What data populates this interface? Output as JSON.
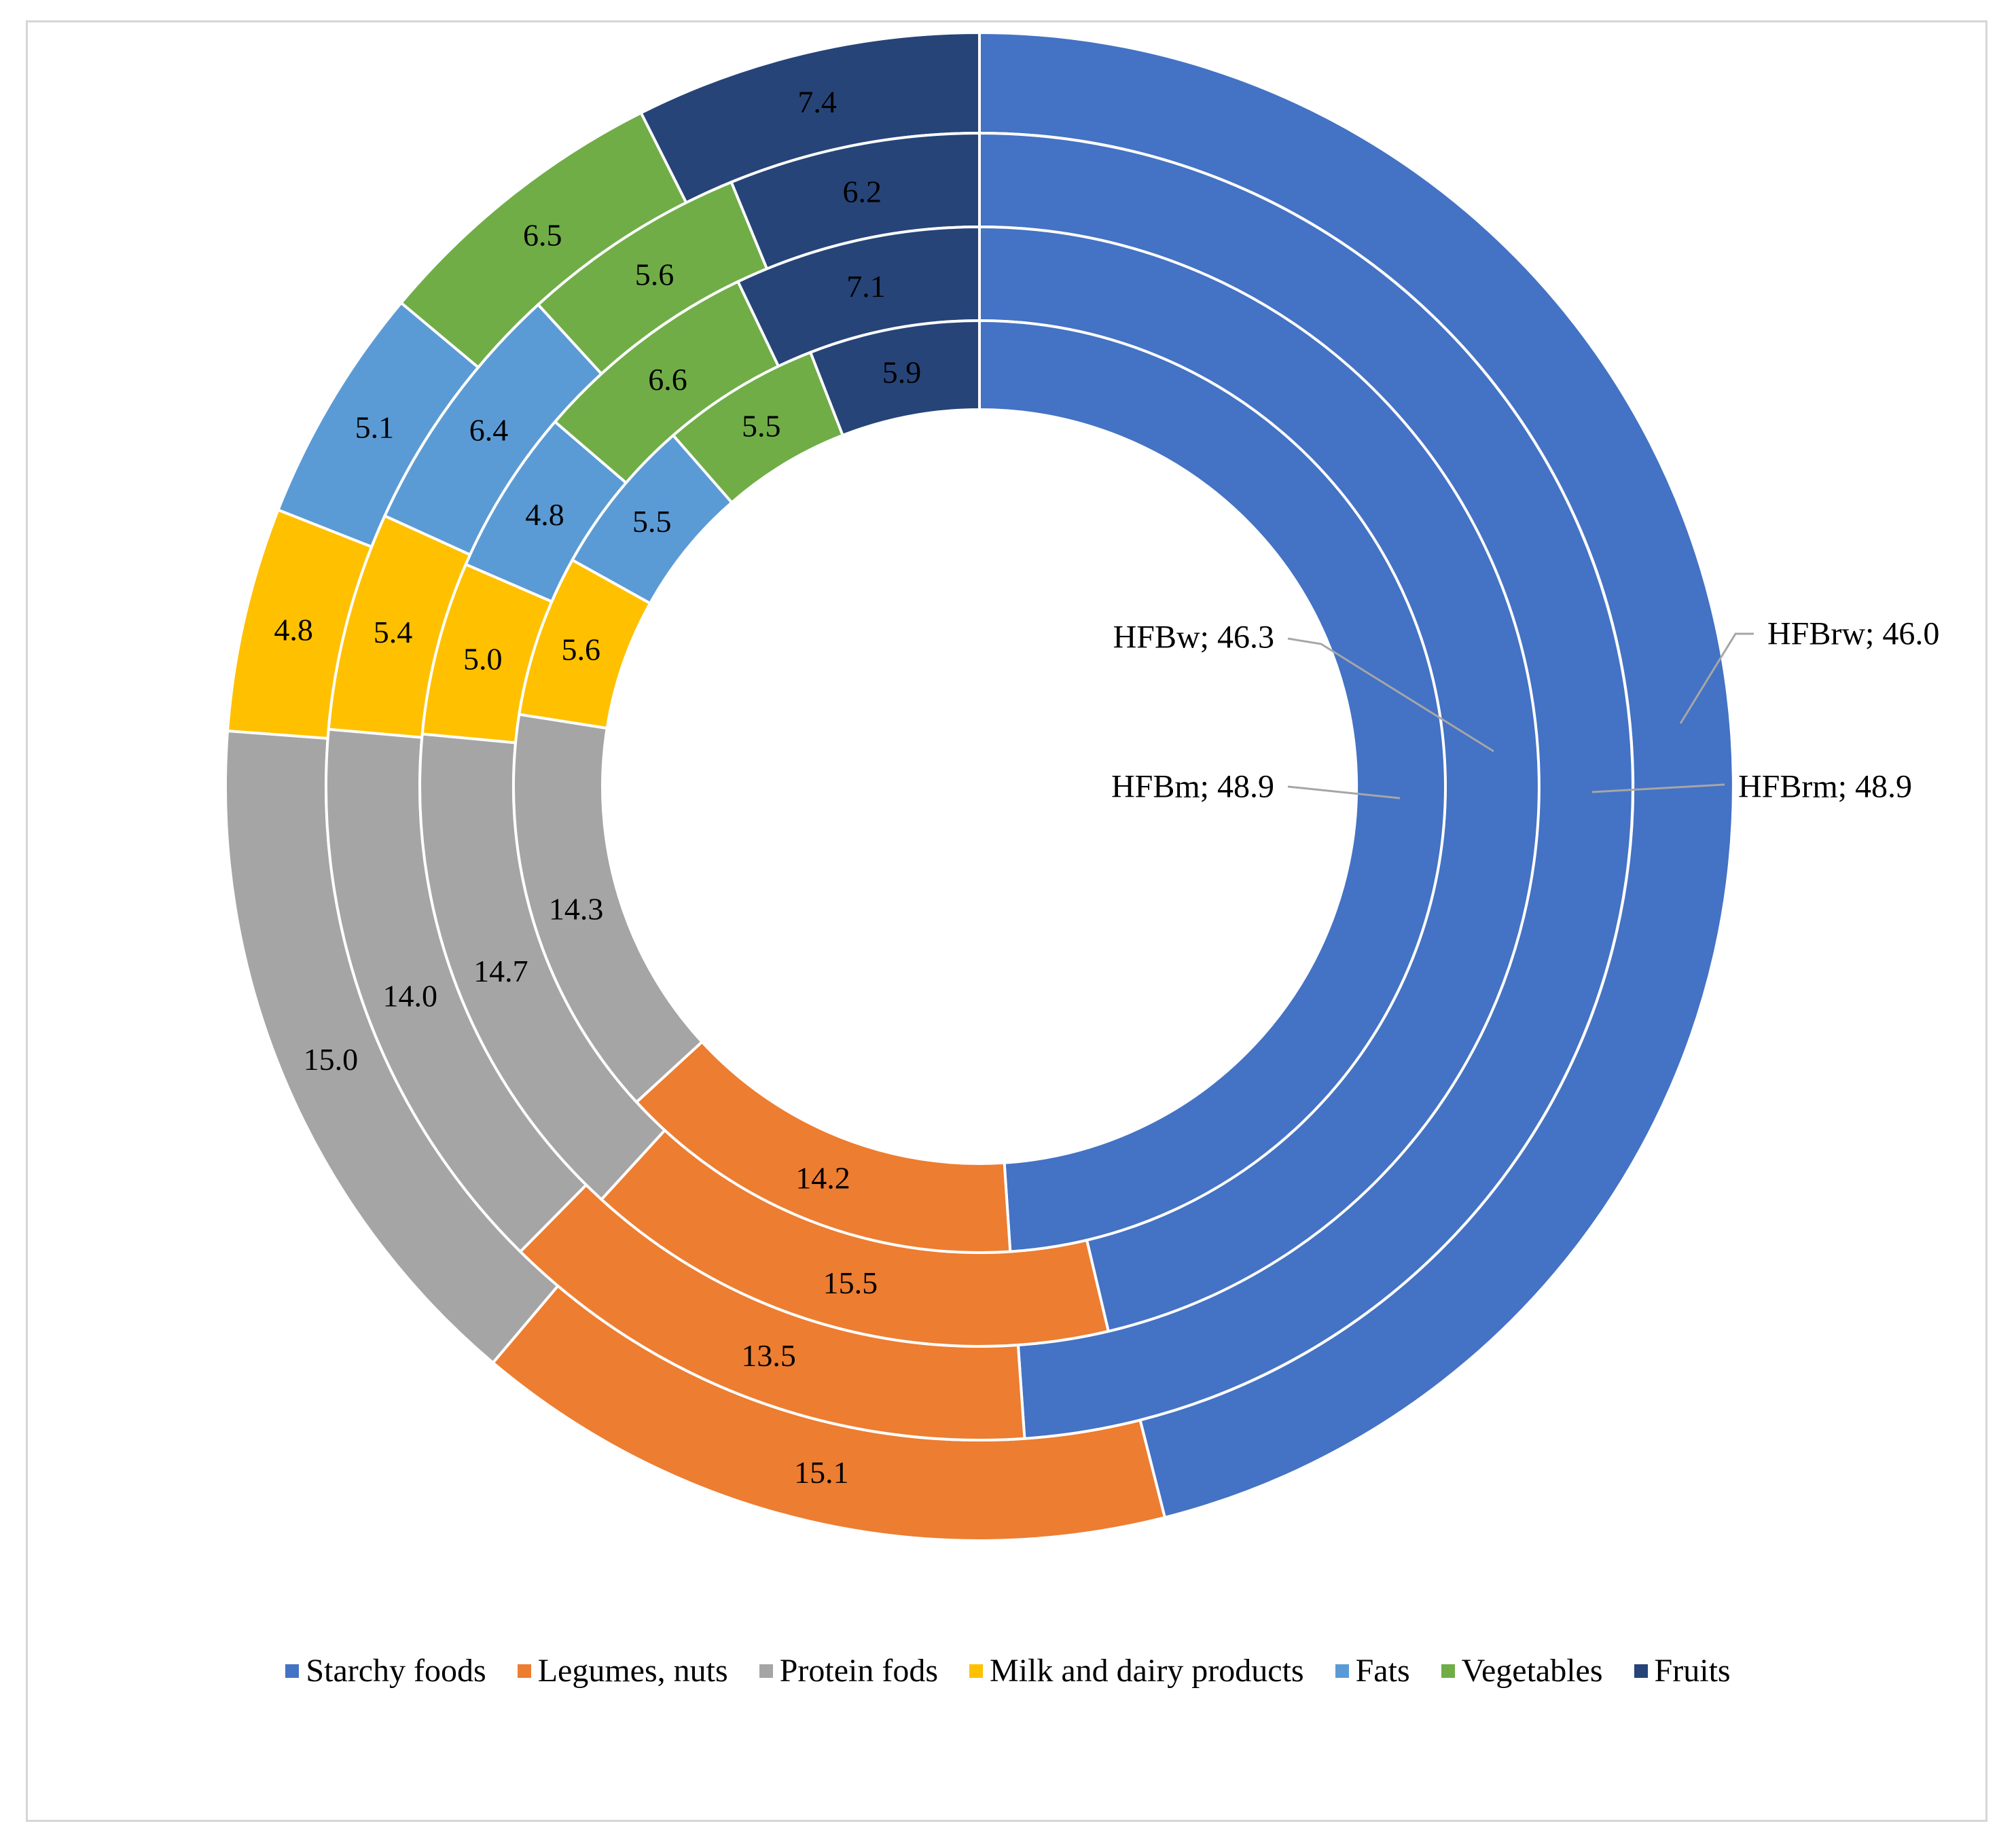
{
  "chart_data": {
    "type": "doughnut",
    "categories": [
      "Starchy foods",
      "Legumes, nuts",
      "Protein fods",
      "Milk and dairy products",
      "Fats",
      "Vegetables",
      "Fruits"
    ],
    "colors": [
      "#4472C4",
      "#ED7D31",
      "#A5A5A5",
      "#FFC000",
      "#5B9BD5",
      "#70AD47",
      "#264478"
    ],
    "series": [
      {
        "name": "HFBrw",
        "ring": "outer",
        "values": [
          46.0,
          15.1,
          15.0,
          4.8,
          5.1,
          6.5,
          7.4
        ],
        "value_labels": [
          "46.0",
          "15.1",
          "15.0",
          "4.8",
          "5.1",
          "6.5",
          "7.4"
        ]
      },
      {
        "name": "HFBrm",
        "ring": "second",
        "values": [
          48.9,
          13.5,
          14.0,
          5.4,
          6.4,
          5.6,
          6.2
        ],
        "value_labels": [
          "48.9",
          "13.5",
          "14.0",
          "5.4",
          "6.4",
          "5.6",
          "6.2"
        ]
      },
      {
        "name": "HFBw",
        "ring": "third",
        "values": [
          46.3,
          15.5,
          14.7,
          5.0,
          4.8,
          6.6,
          7.1
        ],
        "value_labels": [
          "46.3",
          "15.5",
          "14.7",
          "5.0",
          "4.8",
          "6.6",
          "7.1"
        ]
      },
      {
        "name": "HFBm",
        "ring": "inner",
        "values": [
          48.9,
          14.2,
          14.3,
          5.6,
          5.5,
          5.5,
          5.9
        ],
        "value_labels": [
          "48.9",
          "14.2",
          "14.3",
          "5.6",
          "5.5",
          "5.5",
          "5.9"
        ]
      }
    ],
    "callouts": [
      {
        "series": "HFBrw",
        "text": "HFBrw; 46.0"
      },
      {
        "series": "HFBrm",
        "text": "HFBrm; 48.9"
      },
      {
        "series": "HFBw",
        "text": "HFBw; 46.3"
      },
      {
        "series": "HFBm",
        "text": "HFBm; 48.9"
      }
    ],
    "legend": {
      "position": "bottom",
      "entries": [
        "Starchy foods",
        "Legumes, nuts",
        "Protein fods",
        "Milk and dairy products",
        "Fats",
        "Vegetables",
        "Fruits"
      ]
    }
  }
}
